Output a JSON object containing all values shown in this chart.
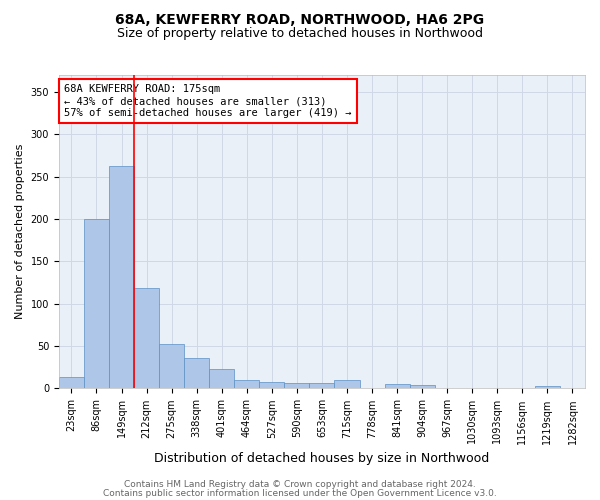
{
  "title1": "68A, KEWFERRY ROAD, NORTHWOOD, HA6 2PG",
  "title2": "Size of property relative to detached houses in Northwood",
  "xlabel": "Distribution of detached houses by size in Northwood",
  "ylabel": "Number of detached properties",
  "categories": [
    "23sqm",
    "86sqm",
    "149sqm",
    "212sqm",
    "275sqm",
    "338sqm",
    "401sqm",
    "464sqm",
    "527sqm",
    "590sqm",
    "653sqm",
    "715sqm",
    "778sqm",
    "841sqm",
    "904sqm",
    "967sqm",
    "1030sqm",
    "1093sqm",
    "1156sqm",
    "1219sqm",
    "1282sqm"
  ],
  "values": [
    13,
    200,
    262,
    118,
    53,
    36,
    23,
    10,
    8,
    7,
    7,
    10,
    0,
    5,
    4,
    0,
    0,
    0,
    0,
    3,
    0
  ],
  "bar_color": "#aec6e8",
  "bar_edge_color": "#5a8fc4",
  "vline_x": 2.5,
  "vline_color": "red",
  "annotation_text": "68A KEWFERRY ROAD: 175sqm\n← 43% of detached houses are smaller (313)\n57% of semi-detached houses are larger (419) →",
  "annotation_box_color": "white",
  "annotation_box_edge": "red",
  "ylim": [
    0,
    370
  ],
  "yticks": [
    0,
    50,
    100,
    150,
    200,
    250,
    300,
    350
  ],
  "grid_color": "#d0d8e8",
  "bg_color": "#eaf0f8",
  "footer1": "Contains HM Land Registry data © Crown copyright and database right 2024.",
  "footer2": "Contains public sector information licensed under the Open Government Licence v3.0.",
  "title1_fontsize": 10,
  "title2_fontsize": 9,
  "xlabel_fontsize": 9,
  "ylabel_fontsize": 8,
  "tick_fontsize": 7,
  "annotation_fontsize": 7.5,
  "footer_fontsize": 6.5
}
